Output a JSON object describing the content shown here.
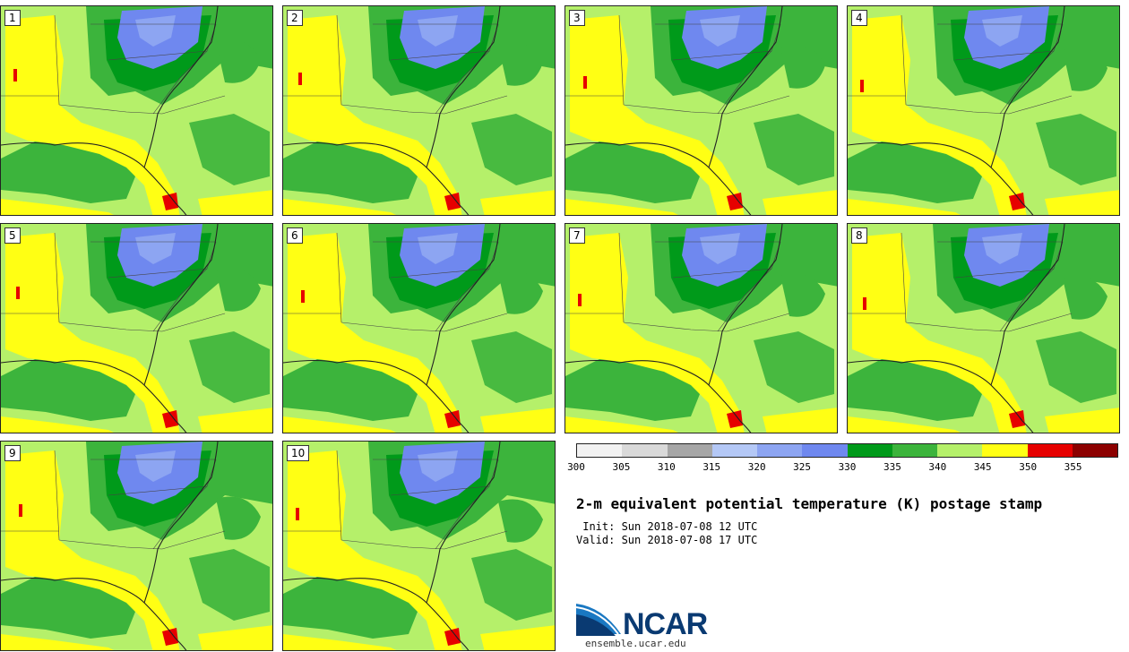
{
  "title": "2-m equivalent potential temperature (K) postage stamp",
  "init_line": " Init: Sun 2018-07-08 12 UTC",
  "valid_line": "Valid: Sun 2018-07-08 17 UTC",
  "logo": {
    "name": "NCAR",
    "url": "ensemble.ucar.edu"
  },
  "panels": [
    "1",
    "2",
    "3",
    "4",
    "5",
    "6",
    "7",
    "8",
    "9",
    "10"
  ],
  "colorbar": {
    "ticks": [
      "300",
      "305",
      "310",
      "315",
      "320",
      "325",
      "330",
      "335",
      "340",
      "345",
      "350",
      "355"
    ],
    "colors": [
      "#f2f2f2",
      "#d9d9d9",
      "#a6a6a6",
      "#b4c8f6",
      "#8da5f2",
      "#6f88ef",
      "#009a1a",
      "#3cb43c",
      "#b5f06a",
      "#ffff14",
      "#e60000",
      "#8c0000"
    ]
  },
  "map_colors": {
    "background": "#b5f06a",
    "dark_green": "#3cb43c",
    "darkest_green": "#009a1a",
    "yellow": "#ffff14",
    "blue": "#6f88ef",
    "light_blue": "#8da5f2",
    "red": "#e60000"
  }
}
